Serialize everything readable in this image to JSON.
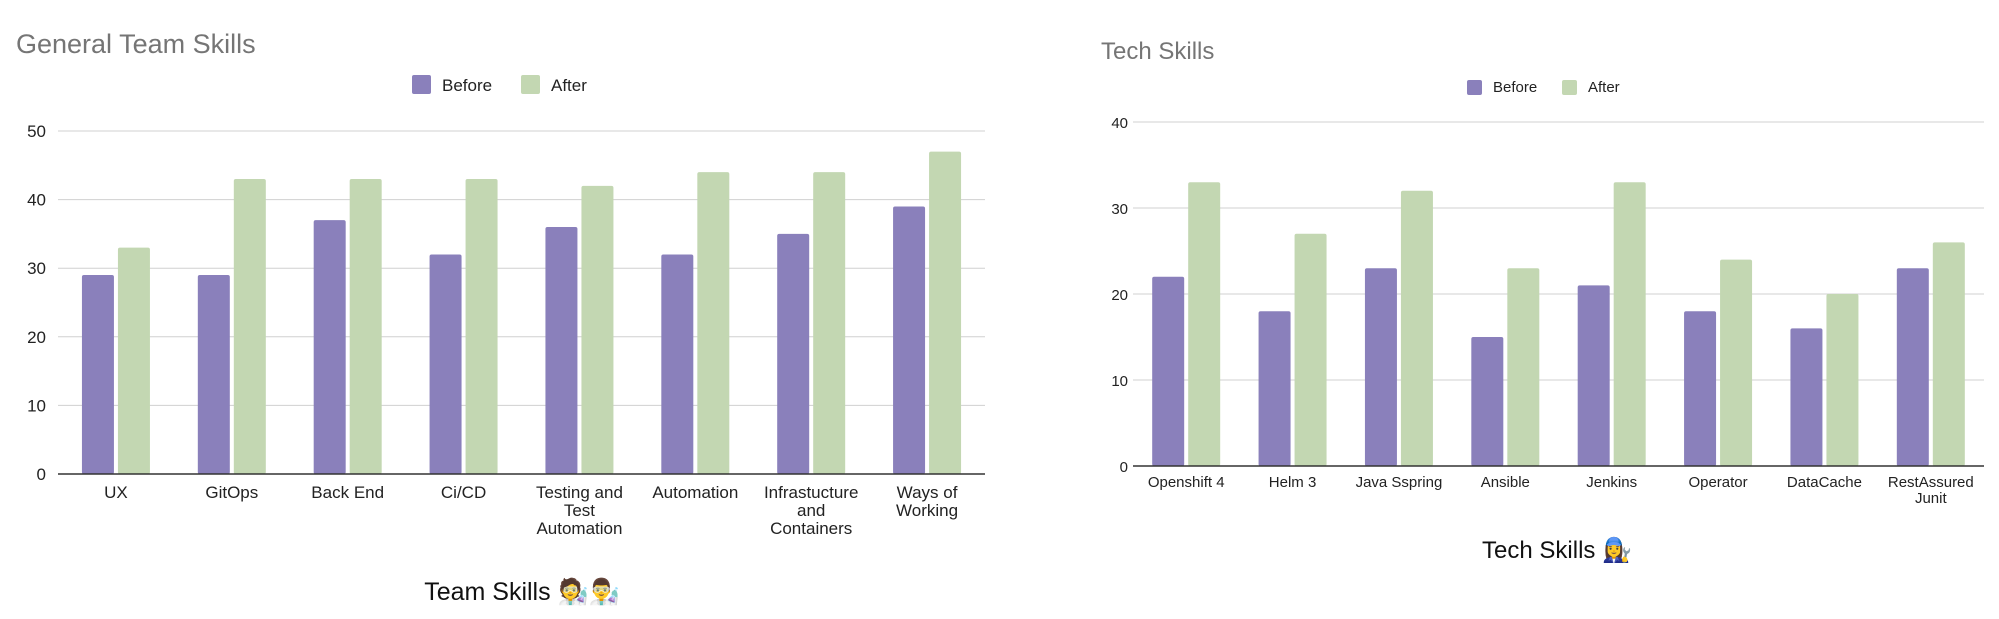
{
  "chart_data": [
    {
      "type": "bar",
      "title": "General Team Skills",
      "caption": "Team Skills 🧑‍🔬👨‍🔬",
      "categories": [
        "UX",
        "GitOps",
        "Back End",
        "Ci/CD",
        "Testing and Test Automation",
        "Automation",
        "Infrastucture and Containers",
        "Ways of Working"
      ],
      "category_lines": [
        [
          "UX"
        ],
        [
          "GitOps"
        ],
        [
          "Back End"
        ],
        [
          "Ci/CD"
        ],
        [
          "Testing and",
          "Test",
          "Automation"
        ],
        [
          "Automation"
        ],
        [
          "Infrastucture",
          "and",
          "Containers"
        ],
        [
          "Ways of",
          "Working"
        ]
      ],
      "series": [
        {
          "name": "Before",
          "color": "#8a80bb",
          "values": [
            29,
            29,
            37,
            32,
            36,
            32,
            35,
            39
          ]
        },
        {
          "name": "After",
          "color": "#c3d7b2",
          "values": [
            33,
            43,
            43,
            43,
            42,
            44,
            44,
            47
          ]
        }
      ],
      "ylim": [
        0,
        50
      ],
      "yticks": [
        0,
        10,
        20,
        30,
        40,
        50
      ],
      "grid": true,
      "legend": "top-center"
    },
    {
      "type": "bar",
      "title": "Tech Skills",
      "caption": "Tech Skills 👩‍🔧",
      "categories": [
        "Openshift 4",
        "Helm 3",
        "Java Sspring",
        "Ansible",
        "Jenkins",
        "Operator",
        "DataCache",
        "RestAssured Junit"
      ],
      "category_lines": [
        [
          "Openshift 4"
        ],
        [
          "Helm 3"
        ],
        [
          "Java Sspring"
        ],
        [
          "Ansible"
        ],
        [
          "Jenkins"
        ],
        [
          "Operator"
        ],
        [
          "DataCache"
        ],
        [
          "RestAssured",
          "Junit"
        ]
      ],
      "series": [
        {
          "name": "Before",
          "color": "#8a80bb",
          "values": [
            22,
            18,
            23,
            15,
            21,
            18,
            16,
            23
          ]
        },
        {
          "name": "After",
          "color": "#c3d7b2",
          "values": [
            33,
            27,
            32,
            23,
            33,
            24,
            20,
            26
          ]
        }
      ],
      "ylim": [
        0,
        40
      ],
      "yticks": [
        0,
        10,
        20,
        30,
        40
      ],
      "grid": true,
      "legend": "top-center"
    }
  ]
}
